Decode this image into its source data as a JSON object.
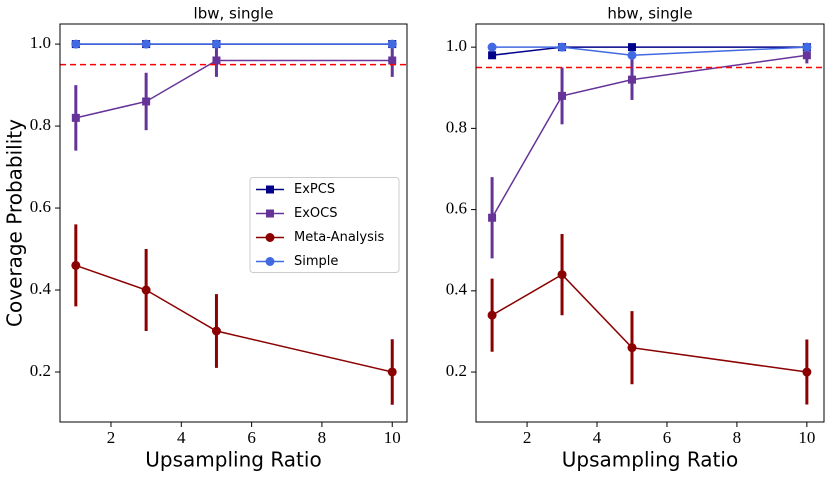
{
  "chart_data": [
    {
      "type": "line",
      "title": "lbw, single",
      "xlabel": "Upsampling Ratio",
      "ylabel": "Coverage Probability",
      "x": [
        1,
        3,
        5,
        10
      ],
      "series": [
        {
          "name": "ExPCS",
          "color": "#00008b",
          "marker": "square",
          "values": [
            1,
            1,
            1,
            1
          ]
        },
        {
          "name": "ExOCS",
          "color": "#663399",
          "marker": "square",
          "values": [
            0.82,
            0.86,
            0.96,
            0.96
          ],
          "errors": [
            0.08,
            0.07,
            0.04,
            0.04
          ]
        },
        {
          "name": "Meta-Analysis",
          "color": "#8b0000",
          "marker": "circle",
          "values": [
            0.46,
            0.4,
            0.3,
            0.2
          ],
          "errors": [
            0.1,
            0.1,
            0.09,
            0.08
          ]
        },
        {
          "name": "Simple",
          "color": "#4169e1",
          "marker": "circle",
          "values": [
            1,
            1,
            1,
            1
          ]
        }
      ],
      "hline": {
        "value": 0.95,
        "color": "#ff0000"
      },
      "xlim": [
        0.55,
        10.42
      ],
      "ylim": [
        0.078,
        1.049
      ],
      "xticks": [
        2,
        4,
        6,
        8,
        10
      ],
      "yticks": [
        0.2,
        0.4,
        0.6,
        0.8,
        {
          "value": 1,
          "label": "1.0"
        }
      ],
      "legend": "center right"
    },
    {
      "type": "line",
      "title": "hbw, single",
      "xlabel": "Upsampling Ratio",
      "x": [
        1,
        3,
        5,
        10
      ],
      "series": [
        {
          "color": "#00008b",
          "marker": "square",
          "values": [
            0.98,
            1,
            1,
            1
          ]
        },
        {
          "color": "#663399",
          "marker": "square",
          "values": [
            0.58,
            0.88,
            0.92,
            0.98
          ],
          "errors": [
            0.1,
            0.07,
            0.05,
            0.02
          ]
        },
        {
          "color": "#8b0000",
          "marker": "circle",
          "values": [
            0.34,
            0.44,
            0.26,
            0.2
          ],
          "errors": [
            0.09,
            0.1,
            0.09,
            0.08
          ]
        },
        {
          "color": "#4169e1",
          "marker": "circle",
          "values": [
            1,
            1,
            0.98,
            1
          ]
        }
      ],
      "hline": {
        "value": 0.95,
        "color": "#ff0000"
      },
      "xlim": [
        0.54,
        10.49
      ],
      "ylim": [
        0.077,
        1.057
      ],
      "xticks": [
        2,
        4,
        6,
        8,
        10
      ],
      "yticks": [
        0.2,
        0.4,
        0.6,
        0.8,
        {
          "value": 1,
          "label": "1.0"
        }
      ]
    }
  ]
}
